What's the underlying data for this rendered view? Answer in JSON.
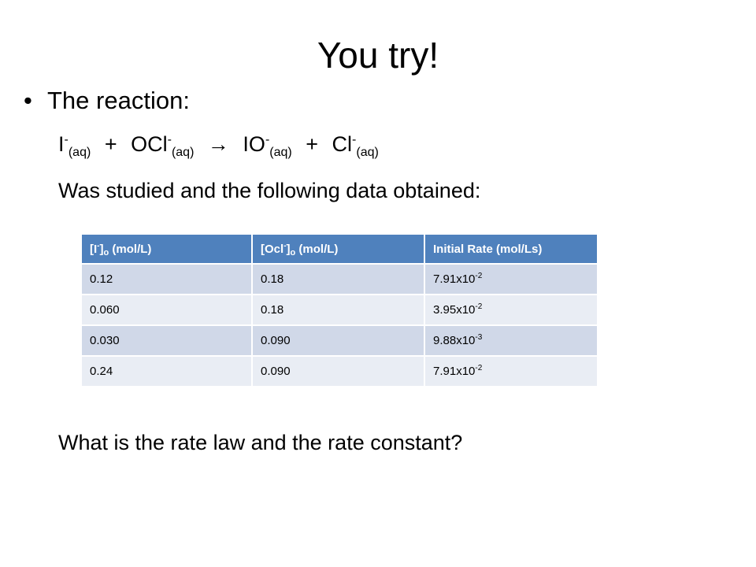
{
  "title": "You try!",
  "bullet": {
    "symbol": "•",
    "text": "The reaction:"
  },
  "equation": {
    "reactant1": "I",
    "reactant1_charge": "-",
    "reactant1_state": "(aq)",
    "plus1": "+",
    "reactant2": "OCl",
    "reactant2_charge": "-",
    "reactant2_state": "(aq)",
    "arrow": "→",
    "product1": "IO",
    "product1_charge": "-",
    "product1_state": "(aq)",
    "plus2": "+",
    "product2": "Cl",
    "product2_charge": "-",
    "product2_state": "(aq)"
  },
  "studied_text": "Was studied and the following data obtained:",
  "table": {
    "headers": [
      {
        "open": "[I",
        "charge": "-",
        "close": "]",
        "sub": "o",
        "unit": " (mol/L)"
      },
      {
        "open": "[Ocl",
        "charge": "-",
        "close": "]",
        "sub": "o",
        "unit": " (mol/L)"
      },
      {
        "label": "Initial Rate (mol/Ls)"
      }
    ],
    "rows": [
      {
        "c1": "0.12",
        "c2": "0.18",
        "rate_base": "7.91x10",
        "rate_exp": "-2"
      },
      {
        "c1": "0.060",
        "c2": "0.18",
        "rate_base": "3.95x10",
        "rate_exp": "-2"
      },
      {
        "c1": "0.030",
        "c2": "0.090",
        "rate_base": "9.88x10",
        "rate_exp": "-3"
      },
      {
        "c1": "0.24",
        "c2": "0.090",
        "rate_base": "7.91x10",
        "rate_exp": "-2"
      }
    ]
  },
  "question": "What is the rate law and the rate constant?",
  "colors": {
    "header_bg": "#4f81bd",
    "row_odd_bg": "#d0d8e8",
    "row_even_bg": "#e9edf4"
  }
}
